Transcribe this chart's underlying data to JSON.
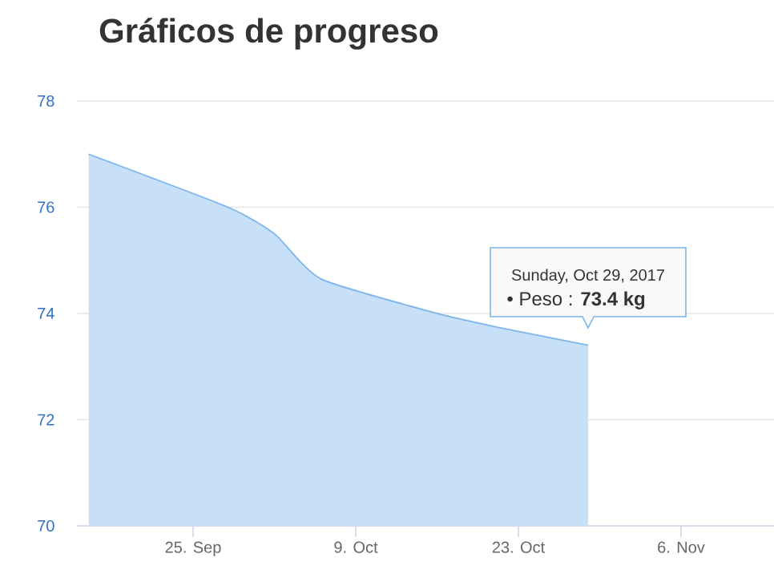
{
  "chart_data": {
    "type": "area",
    "title": "Gráficos de progreso",
    "x": [
      "2017-09-16",
      "2017-09-28",
      "2017-10-02",
      "2017-10-06",
      "2017-10-16",
      "2017-10-21",
      "2017-10-29"
    ],
    "values": [
      77.0,
      76.0,
      75.5,
      74.65,
      74.0,
      73.75,
      73.4
    ],
    "color": "#7cb5ec",
    "xlim": [
      "2017-09-15",
      "2017-11-14"
    ],
    "xticks": [
      {
        "value": "2017-09-25",
        "label": "25. Sep"
      },
      {
        "value": "2017-10-09",
        "label": "9. Oct"
      },
      {
        "value": "2017-10-23",
        "label": "23. Oct"
      },
      {
        "value": "2017-11-06",
        "label": "6. Nov"
      }
    ],
    "ylim": [
      70,
      78
    ],
    "yticks": [
      70,
      72,
      74,
      76,
      78
    ],
    "grid": "y",
    "annotations": [
      "Sunday, Oct 29, 2017",
      {
        "text": "• Peso : **73.4 kg**",
        "x": "2017-10-29",
        "y": 73.4
      }
    ]
  }
}
